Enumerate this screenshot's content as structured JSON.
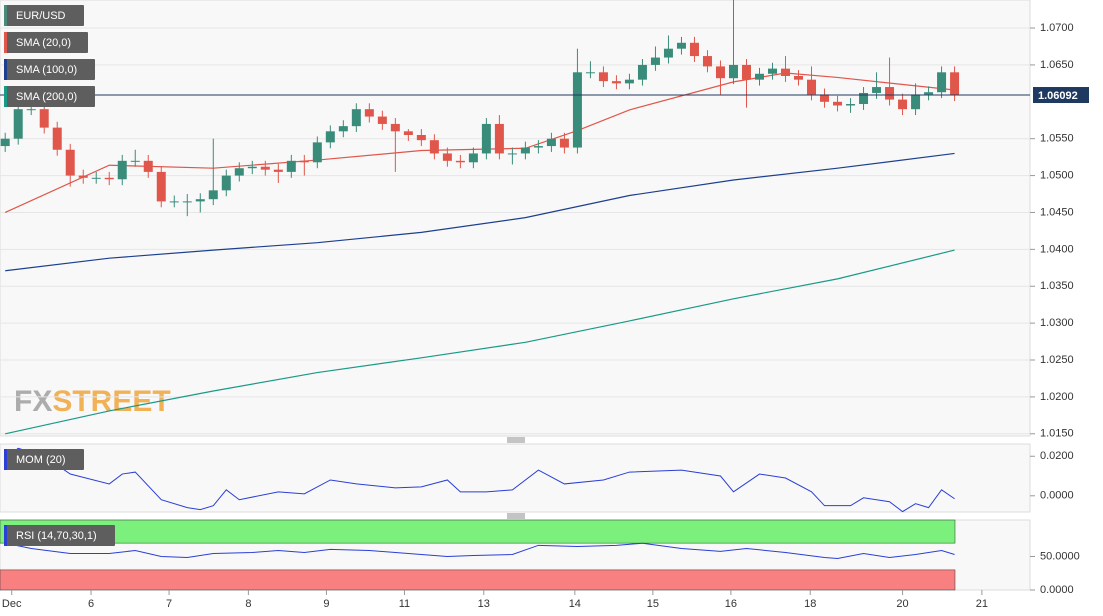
{
  "chart_data": [
    {
      "type": "candlestick",
      "title": "EUR/USD",
      "color": "#4a8a7a",
      "up_color": "#3a8c7a",
      "down_color": "#e0564b",
      "xlim": [
        -0.4,
        78.8
      ],
      "ylim": [
        1.0147,
        1.0738
      ],
      "yticks": [
        {
          "value": 1.07,
          "label": "1.0700"
        },
        {
          "value": 1.065,
          "label": "1.0650"
        },
        {
          "value": 1.055,
          "label": "1.0550"
        },
        {
          "value": 1.05,
          "label": "1.0500"
        },
        {
          "value": 1.045,
          "label": "1.0450"
        },
        {
          "value": 1.04,
          "label": "1.0400"
        },
        {
          "value": 1.035,
          "label": "1.0350"
        },
        {
          "value": 1.03,
          "label": "1.0300"
        },
        {
          "value": 1.025,
          "label": "1.0250"
        },
        {
          "value": 1.02,
          "label": "1.0200"
        },
        {
          "value": 1.015,
          "label": "1.0150"
        }
      ],
      "grid": true,
      "last_price": 1.06092,
      "last_price_color": "#1f3a60",
      "watermark": {
        "first": "FX",
        "second": "STREET"
      },
      "open": [
        1.054,
        1.055,
        1.059,
        1.059,
        1.0565,
        1.0535,
        1.05,
        1.0497,
        1.0497,
        1.0495,
        1.052,
        1.052,
        1.0505,
        1.0465,
        1.0465,
        1.0465,
        1.0468,
        1.048,
        1.05,
        1.051,
        1.0512,
        1.0508,
        1.0505,
        1.052,
        1.0518,
        1.0545,
        1.056,
        1.0567,
        1.059,
        1.058,
        1.057,
        1.056,
        1.0555,
        1.0548,
        1.053,
        1.052,
        1.0518,
        1.053,
        1.057,
        1.053,
        1.053,
        1.0538,
        1.054,
        1.055,
        1.0538,
        1.064,
        1.064,
        1.0628,
        1.0625,
        1.063,
        1.065,
        1.066,
        1.0672,
        1.068,
        1.0662,
        1.0648,
        1.0632,
        1.065,
        1.063,
        1.0638,
        1.0645,
        1.0635,
        1.063,
        1.061,
        1.06,
        1.0595,
        1.0597,
        1.0612,
        1.062,
        1.0603,
        1.059,
        1.061,
        1.0613,
        1.064
      ],
      "high": [
        1.0558,
        1.0598,
        1.0598,
        1.061,
        1.0573,
        1.0543,
        1.0508,
        1.0505,
        1.0505,
        1.0528,
        1.0535,
        1.0528,
        1.0513,
        1.0473,
        1.0475,
        1.0476,
        1.055,
        1.0508,
        1.0518,
        1.052,
        1.052,
        1.0516,
        1.0528,
        1.0528,
        1.0553,
        1.0568,
        1.0575,
        1.0598,
        1.0598,
        1.0588,
        1.0578,
        1.0563,
        1.0563,
        1.0556,
        1.0538,
        1.0528,
        1.0538,
        1.0578,
        1.0582,
        1.0538,
        1.0546,
        1.0548,
        1.0558,
        1.0558,
        1.0672,
        1.0655,
        1.0648,
        1.0636,
        1.0638,
        1.0658,
        1.0675,
        1.069,
        1.0688,
        1.0688,
        1.067,
        1.0656,
        1.0738,
        1.0658,
        1.0646,
        1.0653,
        1.0662,
        1.0643,
        1.0648,
        1.0618,
        1.0608,
        1.0605,
        1.062,
        1.064,
        1.066,
        1.0611,
        1.0625,
        1.0621,
        1.0648,
        1.0648
      ],
      "low": [
        1.0532,
        1.0542,
        1.0582,
        1.0557,
        1.0527,
        1.0485,
        1.0489,
        1.0489,
        1.0487,
        1.0487,
        1.0512,
        1.0497,
        1.0457,
        1.0457,
        1.0445,
        1.045,
        1.046,
        1.0472,
        1.0492,
        1.0502,
        1.05,
        1.049,
        1.0497,
        1.05,
        1.051,
        1.0537,
        1.0552,
        1.0559,
        1.0572,
        1.0562,
        1.0505,
        1.0547,
        1.054,
        1.0522,
        1.0512,
        1.051,
        1.051,
        1.0522,
        1.0522,
        1.0515,
        1.0522,
        1.053,
        1.0532,
        1.053,
        1.053,
        1.0632,
        1.062,
        1.0617,
        1.0617,
        1.0622,
        1.0642,
        1.0652,
        1.0664,
        1.0654,
        1.064,
        1.061,
        1.0624,
        1.0592,
        1.0622,
        1.063,
        1.0627,
        1.0622,
        1.0602,
        1.0592,
        1.0587,
        1.0585,
        1.0589,
        1.0604,
        1.0595,
        1.0582,
        1.0582,
        1.0602,
        1.0605,
        1.0601
      ],
      "close": [
        1.055,
        1.059,
        1.059,
        1.0565,
        1.0535,
        1.05,
        1.0497,
        1.0497,
        1.0495,
        1.052,
        1.052,
        1.0505,
        1.0465,
        1.0465,
        1.0465,
        1.0468,
        1.048,
        1.05,
        1.051,
        1.0512,
        1.0508,
        1.0505,
        1.052,
        1.0518,
        1.0545,
        1.056,
        1.0567,
        1.059,
        1.058,
        1.057,
        1.056,
        1.0555,
        1.0548,
        1.053,
        1.052,
        1.0518,
        1.053,
        1.057,
        1.053,
        1.053,
        1.0538,
        1.054,
        1.055,
        1.0538,
        1.064,
        1.064,
        1.0628,
        1.0625,
        1.063,
        1.065,
        1.066,
        1.0672,
        1.068,
        1.0662,
        1.0648,
        1.0632,
        1.065,
        1.063,
        1.0638,
        1.0645,
        1.0635,
        1.063,
        1.061,
        1.06,
        1.0595,
        1.0597,
        1.0612,
        1.062,
        1.0603,
        1.059,
        1.061,
        1.0613,
        1.064,
        1.0609
      ],
      "series": [
        {
          "name": "SMA (20,0)",
          "color": "#e0564b",
          "x": [
            0,
            8,
            16,
            24,
            32,
            40,
            44,
            48,
            56,
            60,
            64,
            73
          ],
          "values": [
            1.045,
            1.0514,
            1.051,
            1.0521,
            1.0534,
            1.0537,
            1.0561,
            1.0589,
            1.0627,
            1.0639,
            1.0633,
            1.0616
          ]
        },
        {
          "name": "SMA (100,0)",
          "color": "#1d3f8f",
          "x": [
            0,
            8,
            16,
            24,
            32,
            40,
            48,
            56,
            64,
            73
          ],
          "values": [
            1.0371,
            1.0388,
            1.0399,
            1.0409,
            1.0423,
            1.0443,
            1.0473,
            1.0494,
            1.051,
            1.053
          ]
        },
        {
          "name": "SMA (200,0)",
          "color": "#1a9a86",
          "x": [
            0,
            8,
            16,
            24,
            32,
            40,
            48,
            56,
            64,
            73
          ],
          "values": [
            1.015,
            1.0181,
            1.0208,
            1.0233,
            1.0253,
            1.0274,
            1.0303,
            1.0333,
            1.036,
            1.0399
          ]
        }
      ]
    },
    {
      "type": "line",
      "title": "MOM (20)",
      "color": "#2a3fd6",
      "xlim": [
        -0.4,
        78.8
      ],
      "ylim": [
        -0.0082,
        0.0262
      ],
      "yticks": [
        {
          "value": 0.02,
          "label": "0.0200"
        },
        {
          "value": 0,
          "label": "0.0000"
        }
      ],
      "x": [
        0,
        1,
        3,
        5,
        8,
        9,
        10,
        12,
        14,
        15,
        16,
        17,
        18,
        21,
        23,
        25,
        27,
        30,
        32,
        34,
        35,
        37,
        39,
        41,
        43,
        46,
        48,
        52,
        55,
        56,
        58,
        60,
        62,
        63,
        65,
        66,
        68,
        69,
        70,
        71,
        72,
        73
      ],
      "values": [
        0.019,
        0.024,
        0.02,
        0.011,
        0.006,
        0.011,
        0.012,
        -0.002,
        -0.006,
        -0.007,
        -0.005,
        0.003,
        -0.002,
        0.002,
        0.001,
        0.008,
        0.006,
        0.004,
        0.0045,
        0.008,
        0.002,
        0.002,
        0.003,
        0.013,
        0.006,
        0.008,
        0.012,
        0.013,
        0.01,
        0.002,
        0.011,
        0.009,
        0.002,
        -0.005,
        -0.005,
        -0.001,
        -0.003,
        -0.008,
        -0.004,
        -0.006,
        0.003,
        -0.0015
      ]
    },
    {
      "type": "line",
      "title": "RSI (14,70,30,1)",
      "color": "#2a3fd6",
      "xlim": [
        -0.4,
        78.8
      ],
      "ylim": [
        0,
        104.5
      ],
      "upper": 70,
      "lower": 30,
      "upper_color": "#7cf07c",
      "lower_color": "#f88080",
      "yticks": [
        {
          "value": 50,
          "label": "50.0000"
        },
        {
          "value": 0,
          "label": "0.0000"
        }
      ],
      "xticks": [
        {
          "value": 0.5,
          "label": "Dec"
        },
        {
          "value": 6.6,
          "label": "6"
        },
        {
          "value": 12.6,
          "label": "7"
        },
        {
          "value": 18.7,
          "label": "8"
        },
        {
          "value": 24.7,
          "label": "9"
        },
        {
          "value": 30.7,
          "label": "11"
        },
        {
          "value": 36.8,
          "label": "13"
        },
        {
          "value": 43.8,
          "label": "14"
        },
        {
          "value": 49.8,
          "label": "15"
        },
        {
          "value": 55.8,
          "label": "16"
        },
        {
          "value": 61.9,
          "label": "18"
        },
        {
          "value": 69,
          "label": "20"
        },
        {
          "value": 75.1,
          "label": "21"
        }
      ],
      "x": [
        0,
        2,
        5,
        8,
        10,
        12,
        14,
        16,
        19,
        21,
        23,
        25,
        28,
        31,
        34,
        36,
        39,
        41,
        44,
        47,
        49,
        52,
        55,
        57,
        60,
        63,
        64,
        66,
        68,
        70,
        72,
        73
      ],
      "values": [
        70,
        62,
        54.5,
        54.5,
        59,
        50,
        48.5,
        54.5,
        56,
        59,
        56,
        60.6,
        59,
        54.5,
        50,
        51.5,
        53,
        66.7,
        65,
        66.7,
        69.7,
        62,
        57.6,
        62,
        56,
        48.5,
        47,
        54.5,
        48.5,
        53,
        59,
        53
      ]
    }
  ]
}
